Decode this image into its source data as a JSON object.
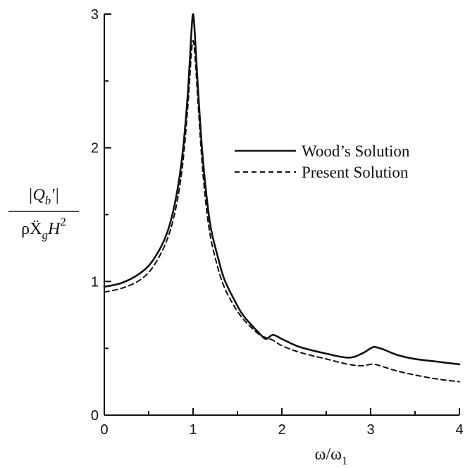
{
  "chart_data": {
    "type": "line",
    "xlabel": "ω/ω",
    "xlabel_sub": "1",
    "ylabel_num": "|Q",
    "ylabel_num_sub": "b",
    "ylabel_num_tail": "′|",
    "ylabel_den": "ρẌ",
    "ylabel_den_sub": "g",
    "ylabel_den_mid": "H",
    "ylabel_den_sup": "2",
    "xlim": [
      0,
      4
    ],
    "ylim": [
      0,
      3
    ],
    "xticks": [
      "0",
      "1",
      "2",
      "3",
      "4"
    ],
    "yticks": [
      "0",
      "1",
      "2",
      "3"
    ],
    "grid": false,
    "legend": "right",
    "series": [
      {
        "name": "Wood’s Solution",
        "style": "solid",
        "color": "#111111",
        "x": [
          0,
          0.2,
          0.4,
          0.55,
          0.7,
          0.8,
          0.88,
          0.94,
          0.98,
          1.0,
          1.02,
          1.05,
          1.1,
          1.15,
          1.2,
          1.28,
          1.35,
          1.45,
          1.55,
          1.65,
          1.75,
          1.82,
          1.9,
          2.0,
          2.2,
          2.5,
          2.75,
          2.9,
          3.0,
          3.05,
          3.15,
          3.3,
          3.5,
          3.75,
          4.0
        ],
        "values": [
          0.96,
          0.99,
          1.06,
          1.16,
          1.35,
          1.6,
          1.95,
          2.4,
          2.85,
          3.0,
          2.85,
          2.5,
          2.0,
          1.65,
          1.4,
          1.18,
          1.02,
          0.88,
          0.76,
          0.68,
          0.61,
          0.57,
          0.6,
          0.57,
          0.51,
          0.46,
          0.43,
          0.46,
          0.5,
          0.51,
          0.49,
          0.45,
          0.42,
          0.4,
          0.38
        ]
      },
      {
        "name": "Present Solution",
        "style": "dashed",
        "color": "#111111",
        "x": [
          0,
          0.2,
          0.4,
          0.55,
          0.7,
          0.8,
          0.88,
          0.94,
          0.98,
          1.0,
          1.02,
          1.05,
          1.1,
          1.15,
          1.2,
          1.28,
          1.35,
          1.45,
          1.55,
          1.65,
          1.75,
          1.82,
          1.9,
          2.0,
          2.2,
          2.5,
          2.75,
          2.9,
          3.0,
          3.05,
          3.15,
          3.3,
          3.5,
          3.75,
          4.0
        ],
        "values": [
          0.92,
          0.95,
          1.01,
          1.11,
          1.3,
          1.53,
          1.86,
          2.3,
          2.7,
          2.8,
          2.7,
          2.4,
          1.9,
          1.55,
          1.32,
          1.1,
          0.96,
          0.83,
          0.73,
          0.66,
          0.6,
          0.58,
          0.56,
          0.52,
          0.47,
          0.42,
          0.38,
          0.37,
          0.38,
          0.38,
          0.36,
          0.33,
          0.3,
          0.27,
          0.25
        ]
      }
    ]
  }
}
